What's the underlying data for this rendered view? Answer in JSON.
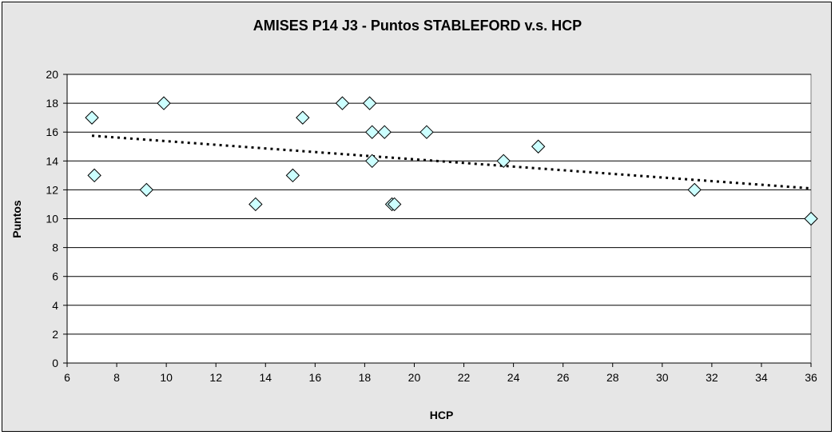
{
  "chart_data": {
    "type": "scatter",
    "title": "AMISES P14 J3 - Puntos STABLEFORD v.s. HCP",
    "xlabel": "HCP",
    "ylabel": "Puntos",
    "xlim": [
      6,
      36
    ],
    "ylim": [
      0,
      20
    ],
    "xticks": [
      6,
      8,
      10,
      12,
      14,
      16,
      18,
      20,
      22,
      24,
      26,
      28,
      30,
      32,
      34,
      36
    ],
    "yticks": [
      0,
      2,
      4,
      6,
      8,
      10,
      12,
      14,
      16,
      18,
      20
    ],
    "grid": "horizontal",
    "marker": "diamond",
    "colors": {
      "marker_fill": "#ccffff",
      "marker_stroke": "#000000",
      "plot_bg": "#ffffff",
      "chart_bg": "#e6e6e6",
      "trendline": "#000000"
    },
    "points": [
      {
        "x": 7.0,
        "y": 17
      },
      {
        "x": 7.1,
        "y": 13
      },
      {
        "x": 9.2,
        "y": 12
      },
      {
        "x": 9.9,
        "y": 18
      },
      {
        "x": 13.6,
        "y": 11
      },
      {
        "x": 15.1,
        "y": 13
      },
      {
        "x": 15.5,
        "y": 17
      },
      {
        "x": 17.1,
        "y": 18
      },
      {
        "x": 18.2,
        "y": 18
      },
      {
        "x": 18.3,
        "y": 16
      },
      {
        "x": 18.3,
        "y": 14
      },
      {
        "x": 18.8,
        "y": 16
      },
      {
        "x": 19.1,
        "y": 11
      },
      {
        "x": 19.2,
        "y": 11
      },
      {
        "x": 20.5,
        "y": 16
      },
      {
        "x": 23.6,
        "y": 14
      },
      {
        "x": 25.0,
        "y": 15
      },
      {
        "x": 31.3,
        "y": 12
      },
      {
        "x": 36.0,
        "y": 10
      }
    ],
    "trendline": {
      "type": "linear",
      "x": [
        7.0,
        36.0
      ],
      "y": [
        15.75,
        12.1
      ]
    }
  }
}
